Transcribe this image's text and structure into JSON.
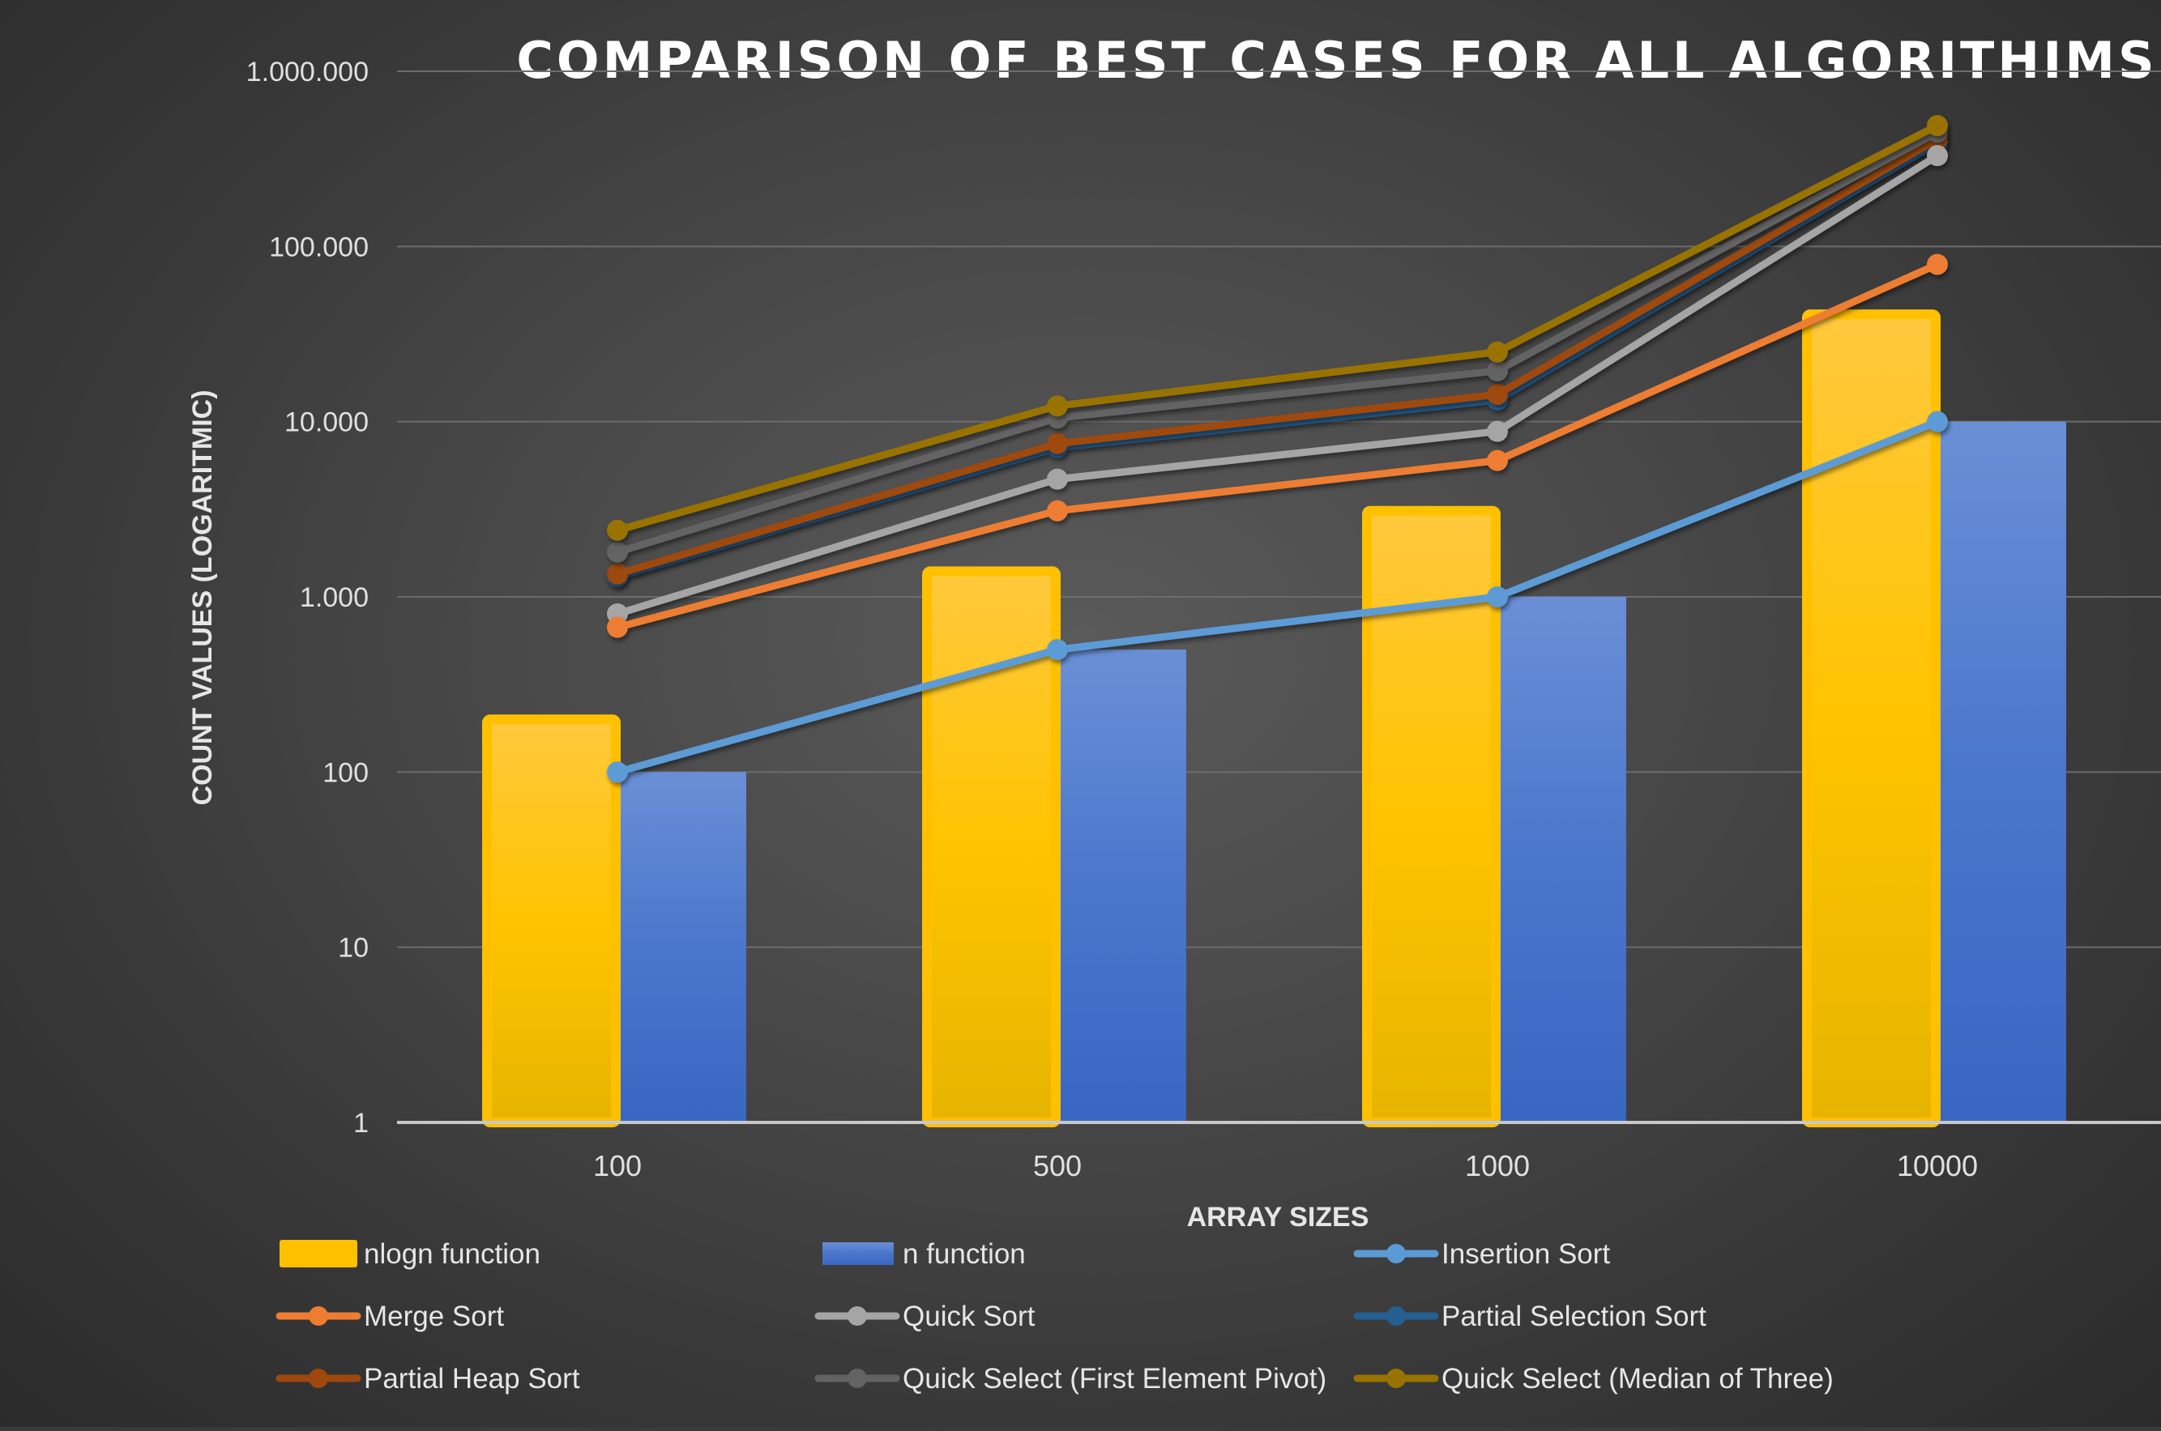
{
  "chart_data": {
    "type": "bar",
    "title": "COMPARISON OF BEST CASES FOR ALL ALGORITHIMS",
    "xlabel": "ARRAY SIZES",
    "ylabel": "COUNT VALUES (LOGARITMIC)",
    "y_scale": "log",
    "ylim": [
      1,
      1000000
    ],
    "y_ticks": [
      1,
      10,
      100,
      1000,
      10000,
      100000,
      1000000
    ],
    "y_tick_labels": [
      "1",
      "10",
      "100",
      "1.000",
      "10.000",
      "100.000",
      "1.000.000"
    ],
    "categories": [
      "100",
      "500",
      "1000",
      "10000"
    ],
    "grid": true,
    "legend_position": "bottom",
    "series": [
      {
        "name": "nlogn function",
        "kind": "bar",
        "color": "#ffc000",
        "values": [
          200,
          1400,
          3100,
          41000
        ]
      },
      {
        "name": "n function",
        "kind": "bar",
        "color": "#4472c4",
        "values": [
          100,
          500,
          1000,
          10000
        ]
      },
      {
        "name": "Insertion Sort",
        "kind": "line",
        "color": "#5b9bd5",
        "values": [
          100,
          500,
          1000,
          10000
        ]
      },
      {
        "name": "Merge Sort",
        "kind": "line",
        "color": "#ed7d31",
        "values": [
          670,
          3100,
          6000,
          79000
        ]
      },
      {
        "name": "Quick Sort",
        "kind": "line",
        "color": "#a5a5a5",
        "values": [
          800,
          4700,
          8800,
          330000
        ]
      },
      {
        "name": "Partial Selection Sort",
        "kind": "line",
        "color": "#255e91",
        "values": [
          1300,
          7100,
          13300,
          390000
        ]
      },
      {
        "name": "Partial Heap Sort",
        "kind": "line",
        "color": "#9e480e",
        "values": [
          1350,
          7500,
          14300,
          410000
        ]
      },
      {
        "name": "Quick Select (First Element Pivot)",
        "kind": "line",
        "color": "#636363",
        "values": [
          1800,
          10500,
          19500,
          450000
        ]
      },
      {
        "name": "Quick Select (Median of Three)",
        "kind": "line",
        "color": "#997300",
        "values": [
          2400,
          12300,
          25000,
          490000
        ]
      }
    ]
  }
}
